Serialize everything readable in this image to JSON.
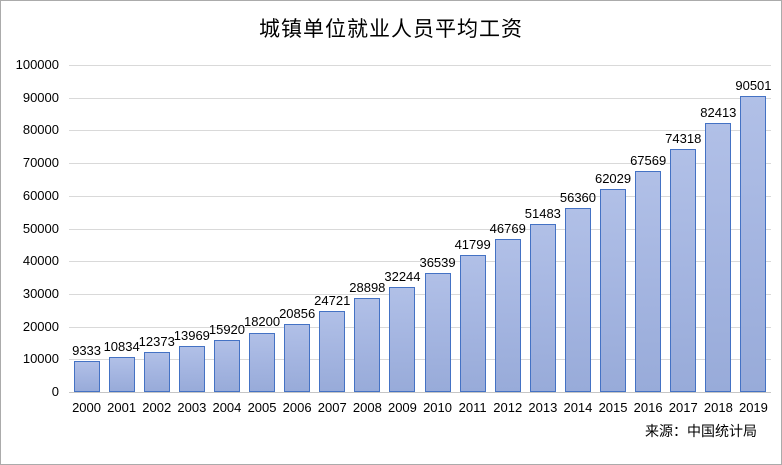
{
  "title": "城镇单位就业人员平均工资",
  "source_note": "来源：中国统计局",
  "colors": {
    "bar_fill_light": "#b1c0e7",
    "bar_fill_dark": "#98abd9",
    "bar_border": "#4472c4",
    "gridline": "#d9d9d9",
    "axis_line": "#c6c6c6",
    "text": "#000000",
    "chart_border": "#ababab",
    "background": "#ffffff"
  },
  "chart_data": {
    "type": "bar",
    "title": "城镇单位就业人员平均工资",
    "categories": [
      "2000",
      "2001",
      "2002",
      "2003",
      "2004",
      "2005",
      "2006",
      "2007",
      "2008",
      "2009",
      "2010",
      "2011",
      "2012",
      "2013",
      "2014",
      "2015",
      "2016",
      "2017",
      "2018",
      "2019"
    ],
    "values": [
      9333,
      10834,
      12373,
      13969,
      15920,
      18200,
      20856,
      24721,
      28898,
      32244,
      36539,
      41799,
      46769,
      51483,
      56360,
      62029,
      67569,
      74318,
      82413,
      90501
    ],
    "data_labels": [
      9333,
      10834,
      12373,
      13969,
      15920,
      18200,
      20856,
      24721,
      28898,
      32244,
      36539,
      41799,
      46769,
      51483,
      56360,
      62029,
      67569,
      74318,
      82413,
      90501
    ],
    "xlabel": "",
    "ylabel": "",
    "ylim": [
      0,
      100000
    ],
    "yticks": [
      0,
      10000,
      20000,
      30000,
      40000,
      50000,
      60000,
      70000,
      80000,
      90000,
      100000
    ],
    "grid": true,
    "legend": "none",
    "source_note": "来源：中国统计局"
  }
}
